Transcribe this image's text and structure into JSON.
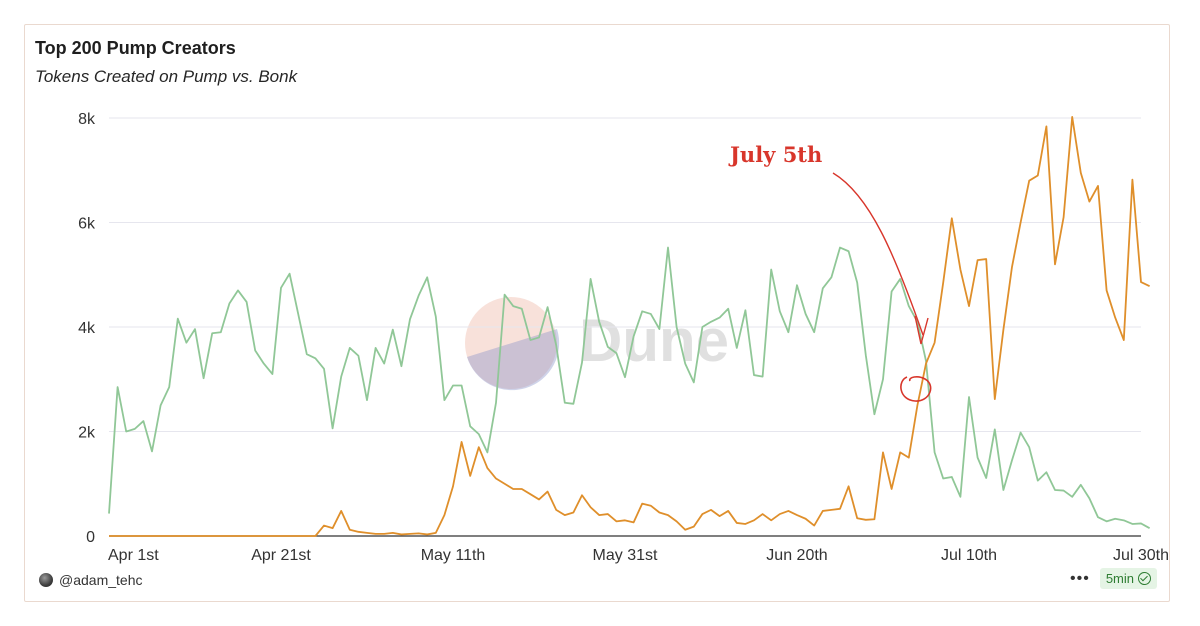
{
  "title": "Top 200 Pump Creators",
  "subtitle": "Tokens Created on Pump vs. Bonk",
  "author": "@adam_tehc",
  "refresh_badge": "5min",
  "annotation": "July 5th",
  "watermark": "Dune",
  "colors": {
    "green": "#90c797",
    "orange": "#df8f2b",
    "annotation": "#d8362b"
  },
  "chart_data": {
    "type": "line",
    "yticks": [
      "0",
      "2k",
      "4k",
      "6k",
      "8k"
    ],
    "xticks": [
      "Apr 1st",
      "Apr 21st",
      "May 11th",
      "May 31st",
      "Jun 20th",
      "Jul 10th",
      "Jul 30th"
    ],
    "xlim": [
      0,
      120
    ],
    "ylim": [
      0,
      8000
    ],
    "series": [
      {
        "color": "#90c797",
        "values": [
          430,
          2850,
          2000,
          2050,
          2200,
          1620,
          2500,
          2850,
          4160,
          3700,
          3960,
          3020,
          3880,
          3900,
          4450,
          4700,
          4480,
          3550,
          3300,
          3100,
          4750,
          5020,
          4250,
          3480,
          3400,
          3200,
          2060,
          3050,
          3600,
          3450,
          2600,
          3600,
          3300,
          3950,
          3250,
          4150,
          4600,
          4950,
          4200,
          2600,
          2880,
          2880,
          2100,
          1950,
          1600,
          2550,
          4620,
          4400,
          4350,
          3750,
          3800,
          4380,
          3650,
          2550,
          2530,
          3320,
          4920,
          4100,
          3620,
          3500,
          3040,
          3820,
          4300,
          4250,
          3960,
          5520,
          4000,
          3300,
          2940,
          4000,
          4100,
          4180,
          4350,
          3600,
          4320,
          3080,
          3050,
          5100,
          4300,
          3900,
          4800,
          4250,
          3900,
          4740,
          4950,
          5520,
          5450,
          4850,
          3460,
          2330,
          3000,
          4680,
          4920,
          4400,
          4100,
          3350,
          1600,
          1100,
          1130,
          750,
          2660,
          1500,
          1110,
          2040,
          880,
          1450,
          1980,
          1700,
          1060,
          1220,
          880,
          870,
          750,
          980,
          720,
          360,
          280,
          330,
          300,
          230,
          240,
          150
        ]
      },
      {
        "color": "#df8f2b",
        "values": [
          0,
          0,
          0,
          0,
          0,
          0,
          0,
          0,
          0,
          0,
          0,
          0,
          0,
          0,
          0,
          0,
          0,
          0,
          0,
          0,
          0,
          0,
          0,
          0,
          0,
          200,
          150,
          480,
          120,
          80,
          60,
          40,
          40,
          60,
          30,
          40,
          50,
          30,
          60,
          400,
          950,
          1800,
          1150,
          1700,
          1300,
          1100,
          1000,
          900,
          900,
          800,
          700,
          850,
          500,
          400,
          450,
          780,
          550,
          400,
          420,
          280,
          300,
          260,
          620,
          580,
          450,
          400,
          280,
          120,
          180,
          420,
          500,
          380,
          480,
          250,
          230,
          300,
          420,
          300,
          420,
          480,
          400,
          330,
          200,
          480,
          500,
          520,
          950,
          340,
          310,
          320,
          1600,
          900,
          1600,
          1500,
          2500,
          3300,
          3700,
          4850,
          6080,
          5100,
          4400,
          5280,
          5300,
          2620,
          3950,
          5150,
          6000,
          6800,
          6900,
          7840,
          5200,
          6100,
          8020,
          6950,
          6400,
          6700,
          4700,
          4180,
          3750,
          6820,
          4860,
          4780
        ]
      }
    ]
  }
}
